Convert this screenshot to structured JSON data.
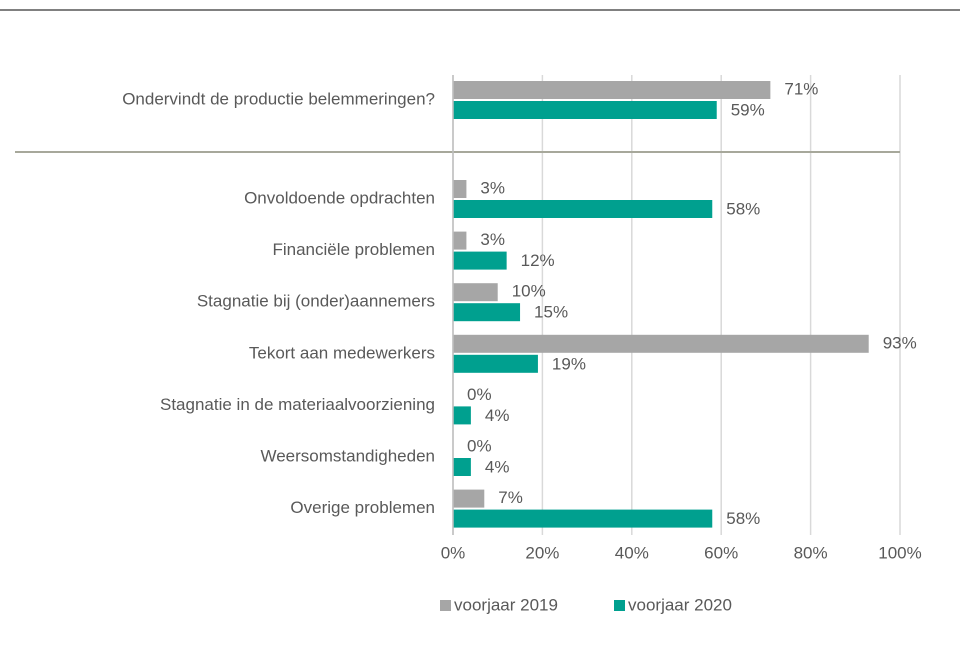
{
  "chart_data": {
    "type": "bar",
    "orientation": "horizontal",
    "categories": [
      "Ondervindt de productie belemmeringen?",
      "Onvoldoende opdrachten",
      "Financiële problemen",
      "Stagnatie bij (onder)aannemers",
      "Tekort aan medewerkers",
      "Stagnatie in de materiaalvoorziening",
      "Weersomstandigheden",
      "Overige problemen"
    ],
    "series": [
      {
        "name": "voorjaar 2019",
        "color": "#a6a6a6",
        "values": [
          71,
          3,
          3,
          10,
          93,
          0,
          0,
          7
        ],
        "value_labels": [
          "71%",
          "3%",
          "3%",
          "10%",
          "93%",
          "0%",
          "0%",
          "7%"
        ]
      },
      {
        "name": "voorjaar 2020",
        "color": "#00a08f",
        "values": [
          59,
          58,
          12,
          15,
          19,
          4,
          4,
          58
        ],
        "value_labels": [
          "59%",
          "58%",
          "12%",
          "15%",
          "19%",
          "4%",
          "4%",
          "58%"
        ]
      }
    ],
    "xlim": [
      0,
      100
    ],
    "xticks": [
      {
        "value": 0,
        "label": "0%"
      },
      {
        "value": 20,
        "label": "20%"
      },
      {
        "value": 40,
        "label": "40%"
      },
      {
        "value": 60,
        "label": "60%"
      },
      {
        "value": 80,
        "label": "80%"
      },
      {
        "value": 100,
        "label": "100%"
      }
    ],
    "grid": true,
    "legend": "bottom"
  }
}
